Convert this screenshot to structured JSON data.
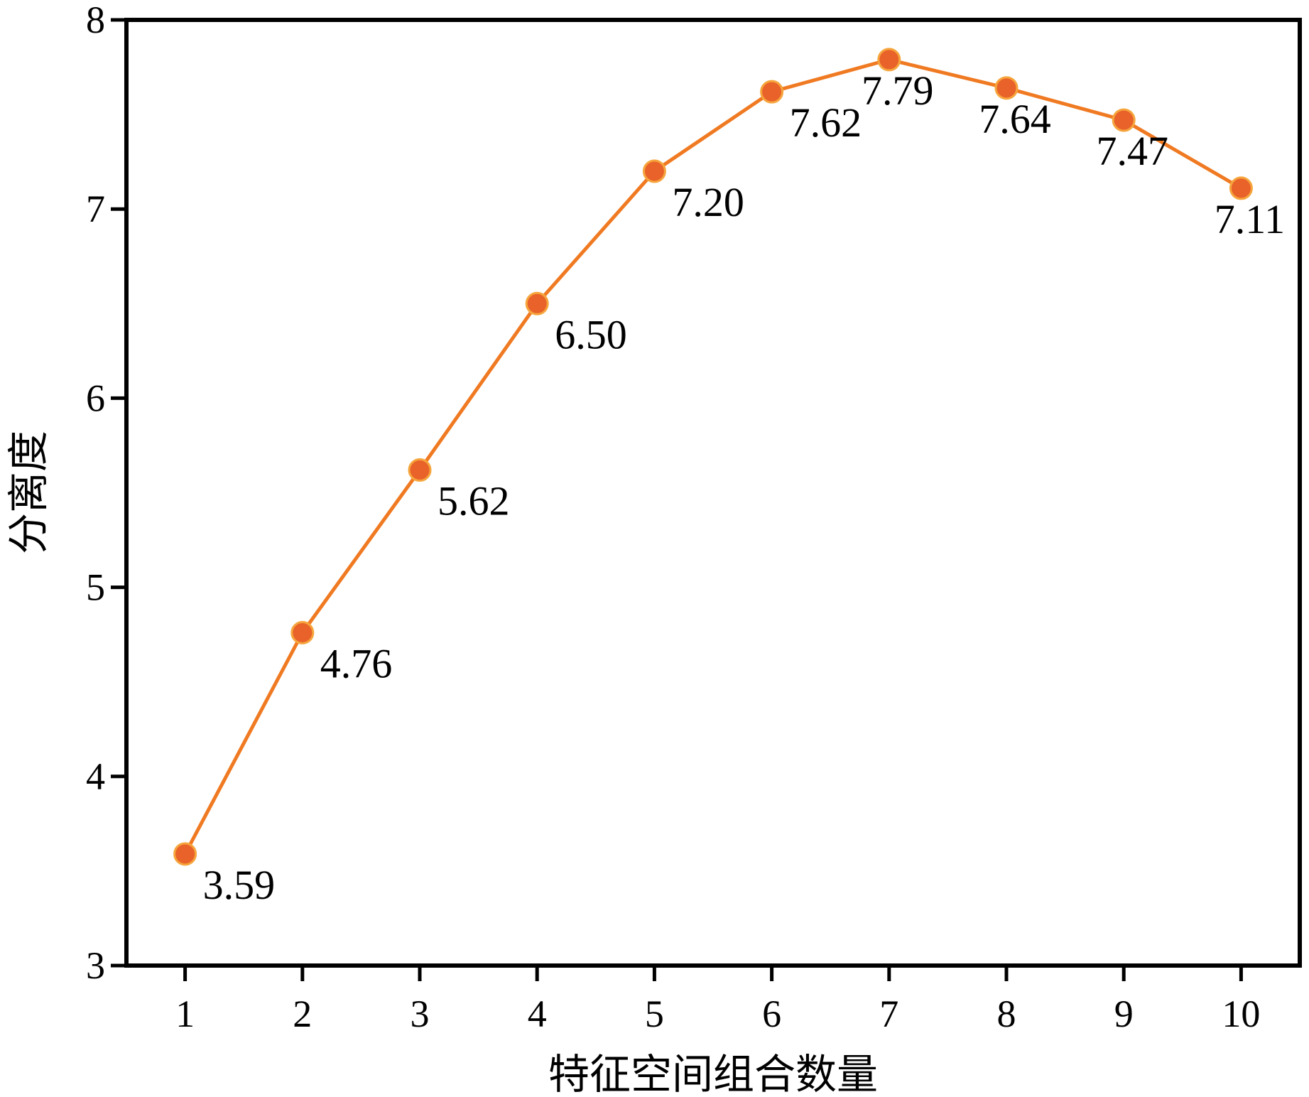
{
  "chart_data": {
    "type": "line",
    "title": "",
    "xlabel": "特征空间组合数量",
    "ylabel": "分离度",
    "x": [
      1,
      2,
      3,
      4,
      5,
      6,
      7,
      8,
      9,
      10
    ],
    "series": [
      {
        "values": [
          3.59,
          4.76,
          5.62,
          6.5,
          7.2,
          7.62,
          7.79,
          7.64,
          7.47,
          7.11
        ],
        "value_labels": [
          "3.59",
          "4.76",
          "5.62",
          "6.50",
          "7.20",
          "7.62",
          "7.79",
          "7.64",
          "7.47",
          "7.11"
        ],
        "color": "#e8622a",
        "line_color": "#f07a22"
      }
    ],
    "xlim": [
      0.5,
      10.5
    ],
    "ylim": [
      3,
      8
    ],
    "x_ticks": [
      "1",
      "2",
      "3",
      "4",
      "5",
      "6",
      "7",
      "8",
      "9",
      "10"
    ],
    "y_ticks": [
      "3",
      "4",
      "5",
      "6",
      "7",
      "8"
    ],
    "grid": false,
    "legend": "none"
  }
}
